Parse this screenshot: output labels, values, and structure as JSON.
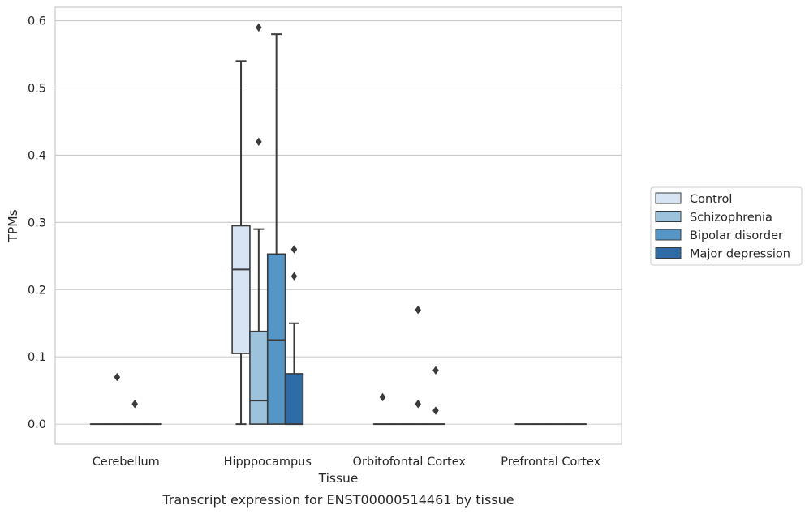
{
  "chart_data": {
    "type": "box",
    "xlabel": "Tissue",
    "ylabel": "TPMs",
    "caption": "Transcript expression for ENST00000514461 by tissue",
    "ylim": [
      -0.03,
      0.62
    ],
    "yticks": [
      0.0,
      0.1,
      0.2,
      0.3,
      0.4,
      0.5,
      0.6
    ],
    "ytick_labels": [
      "0.0",
      "0.1",
      "0.2",
      "0.3",
      "0.4",
      "0.5",
      "0.6"
    ],
    "grid": true,
    "legend_position": "right",
    "categories": [
      "Cerebellum",
      "Hipppocampus",
      "Orbitofontal Cortex",
      "Prefrontal Cortex"
    ],
    "series": [
      {
        "name": "Control",
        "color": "#d6e4f3",
        "boxes": [
          {
            "whisker_low": 0.0,
            "q1": 0.0,
            "median": 0.0,
            "q3": 0.0,
            "whisker_high": 0.0,
            "outliers": []
          },
          {
            "whisker_low": 0.0,
            "q1": 0.105,
            "median": 0.23,
            "q3": 0.295,
            "whisker_high": 0.54,
            "outliers": []
          },
          {
            "whisker_low": 0.0,
            "q1": 0.0,
            "median": 0.0,
            "q3": 0.0,
            "whisker_high": 0.0,
            "outliers": [
              0.04
            ]
          },
          {
            "whisker_low": 0.0,
            "q1": 0.0,
            "median": 0.0,
            "q3": 0.0,
            "whisker_high": 0.0,
            "outliers": []
          }
        ]
      },
      {
        "name": "Schizophrenia",
        "color": "#9dc3dc",
        "boxes": [
          {
            "whisker_low": 0.0,
            "q1": 0.0,
            "median": 0.0,
            "q3": 0.0,
            "whisker_high": 0.0,
            "outliers": [
              0.07
            ]
          },
          {
            "whisker_low": 0.0,
            "q1": 0.0,
            "median": 0.035,
            "q3": 0.138,
            "whisker_high": 0.29,
            "outliers": [
              0.42,
              0.59
            ]
          },
          {
            "whisker_low": 0.0,
            "q1": 0.0,
            "median": 0.0,
            "q3": 0.0,
            "whisker_high": 0.0,
            "outliers": []
          },
          {
            "whisker_low": 0.0,
            "q1": 0.0,
            "median": 0.0,
            "q3": 0.0,
            "whisker_high": 0.0,
            "outliers": []
          }
        ]
      },
      {
        "name": "Bipolar disorder",
        "color": "#5596c6",
        "boxes": [
          {
            "whisker_low": 0.0,
            "q1": 0.0,
            "median": 0.0,
            "q3": 0.0,
            "whisker_high": 0.0,
            "outliers": [
              0.03
            ]
          },
          {
            "whisker_low": 0.0,
            "q1": 0.0,
            "median": 0.125,
            "q3": 0.253,
            "whisker_high": 0.58,
            "outliers": []
          },
          {
            "whisker_low": 0.0,
            "q1": 0.0,
            "median": 0.0,
            "q3": 0.0,
            "whisker_high": 0.0,
            "outliers": [
              0.17,
              0.03
            ]
          },
          {
            "whisker_low": 0.0,
            "q1": 0.0,
            "median": 0.0,
            "q3": 0.0,
            "whisker_high": 0.0,
            "outliers": []
          }
        ]
      },
      {
        "name": "Major depression",
        "color": "#2e6ca8",
        "boxes": [
          {
            "whisker_low": 0.0,
            "q1": 0.0,
            "median": 0.0,
            "q3": 0.0,
            "whisker_high": 0.0,
            "outliers": []
          },
          {
            "whisker_low": 0.0,
            "q1": 0.0,
            "median": 0.0,
            "q3": 0.075,
            "whisker_high": 0.15,
            "outliers": [
              0.26,
              0.22
            ]
          },
          {
            "whisker_low": 0.0,
            "q1": 0.0,
            "median": 0.0,
            "q3": 0.0,
            "whisker_high": 0.0,
            "outliers": [
              0.08,
              0.02
            ]
          },
          {
            "whisker_low": 0.0,
            "q1": 0.0,
            "median": 0.0,
            "q3": 0.0,
            "whisker_high": 0.0,
            "outliers": []
          }
        ]
      }
    ]
  }
}
